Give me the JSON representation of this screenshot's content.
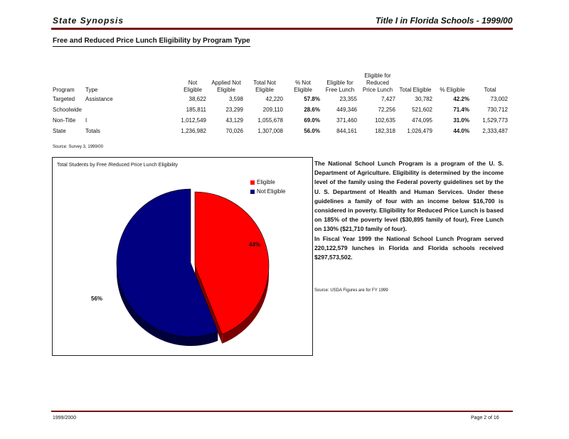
{
  "header": {
    "left": "State Synopsis",
    "right": "Title I in Florida Schools - 1999/00"
  },
  "subtitle": "Free and Reduced Price Lunch Eligibility by Program Type",
  "table": {
    "columns": [
      "Program",
      "Type",
      "Not Eligible",
      "Applied Not Eligible",
      "Total Not Eligible",
      "% Not Eligible",
      "Eligible for Free Lunch",
      "Eligible for Reduced Price Lunch",
      "Total Eligible",
      "% Eligible",
      "Total"
    ],
    "rows": [
      [
        "Targeted",
        "Assistance",
        "38,622",
        "3,598",
        "42,220",
        "57.8%",
        "23,355",
        "7,427",
        "30,782",
        "42.2%",
        "73,002"
      ],
      [
        "Schoolwide",
        "",
        "185,811",
        "23,299",
        "209,110",
        "28.6%",
        "449,346",
        "72,256",
        "521,602",
        "71.4%",
        "730,712"
      ],
      [
        "Non-Title",
        "I",
        "1,012,549",
        "43,129",
        "1,055,678",
        "69.0%",
        "371,460",
        "102,635",
        "474,095",
        "31.0%",
        "1,529,773"
      ],
      [
        "State",
        "Totals",
        "1,236,982",
        "70,026",
        "1,307,008",
        "56.0%",
        "844,161",
        "182,318",
        "1,026,479",
        "44.0%",
        "2,333,487"
      ]
    ]
  },
  "table_source": "Source: Survey 3, 1999/00",
  "chart_data": {
    "type": "pie",
    "title": "Total Students by Free /Reduced Price Lunch Eligibility",
    "labels": [
      "Eligible",
      "Not Eligible"
    ],
    "values": [
      44.0,
      56.0
    ],
    "value_labels": [
      "44%",
      "56%"
    ],
    "colors": [
      "#ff0000",
      "#000080"
    ],
    "legend_position": "top-right"
  },
  "description": [
    "The National School Lunch Program is a program of the U. S. Department of Agriculture. Eligibility is determined by the income level of the family using the Federal poverty guidelines set by the U. S. Department of Health and Human Services. Under these guidelines a family of four with an income below $16,700 is considered in poverty. Eligibility for Reduced Price Lunch is based on 185% of the poverty level ($30,895 family of four), Free Lunch on 130% ($21,710 family of four).",
    "In Fiscal Year 1999 the National School Lunch Program served 220,122,579 lunches in Florida and Florida schools received $297,573,502."
  ],
  "description_source": "Source: USDA Figures are for FY 1999",
  "footer": {
    "left": "1999/2000",
    "right": "Page 2 of 16"
  }
}
